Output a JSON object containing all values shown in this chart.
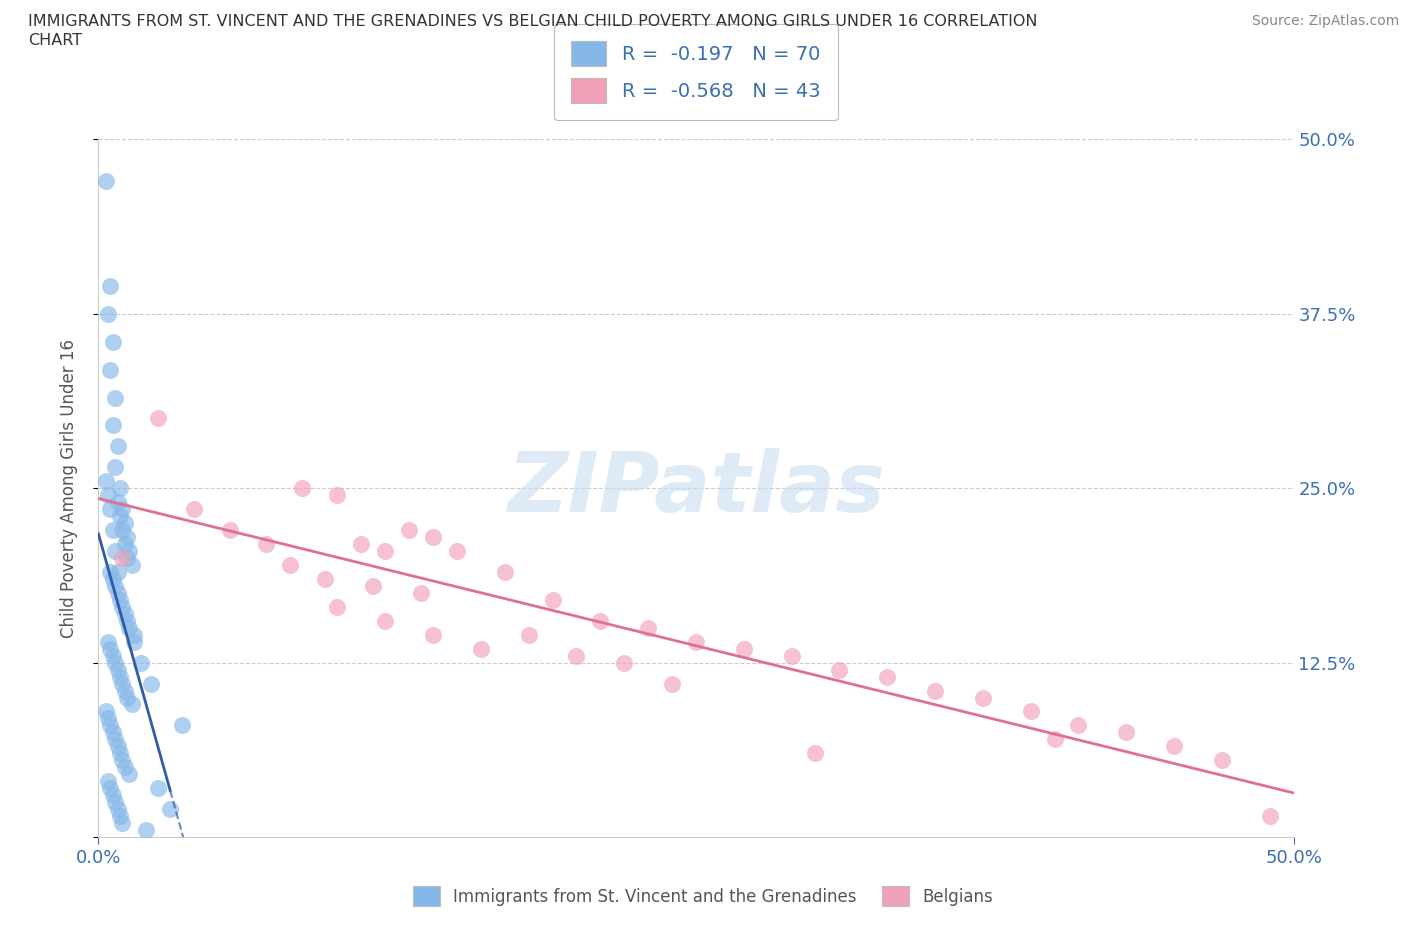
{
  "title_line1": "IMMIGRANTS FROM ST. VINCENT AND THE GRENADINES VS BELGIAN CHILD POVERTY AMONG GIRLS UNDER 16 CORRELATION",
  "title_line2": "CHART",
  "source": "Source: ZipAtlas.com",
  "ylabel": "Child Poverty Among Girls Under 16",
  "legend1_label": "Immigrants from St. Vincent and the Grenadines",
  "legend2_label": "Belgians",
  "r1": -0.197,
  "n1": 70,
  "r2": -0.568,
  "n2": 43,
  "blue_color": "#85B8E8",
  "pink_color": "#F2A0B8",
  "blue_line_color": "#2F5CA8",
  "pink_line_color": "#E07090",
  "blue_scatter_x": [
    0.3,
    0.5,
    0.4,
    0.6,
    0.5,
    0.7,
    0.6,
    0.8,
    0.7,
    0.9,
    0.8,
    1.0,
    0.9,
    1.1,
    1.0,
    1.2,
    1.1,
    1.3,
    1.2,
    1.4,
    0.5,
    0.6,
    0.7,
    0.8,
    0.9,
    1.0,
    1.1,
    1.2,
    1.3,
    1.5,
    0.4,
    0.5,
    0.6,
    0.7,
    0.8,
    0.9,
    1.0,
    1.1,
    1.2,
    1.4,
    0.3,
    0.4,
    0.5,
    0.6,
    0.7,
    0.8,
    0.9,
    1.0,
    1.1,
    1.3,
    0.4,
    0.5,
    0.6,
    0.7,
    0.8,
    0.9,
    1.0,
    2.0,
    2.5,
    3.0,
    0.3,
    0.4,
    0.5,
    0.6,
    0.7,
    0.8,
    1.5,
    1.8,
    2.2,
    3.5
  ],
  "blue_scatter_y": [
    47.0,
    39.5,
    37.5,
    35.5,
    33.5,
    31.5,
    29.5,
    28.0,
    26.5,
    25.0,
    24.0,
    23.5,
    23.0,
    22.5,
    22.0,
    21.5,
    21.0,
    20.5,
    20.0,
    19.5,
    19.0,
    18.5,
    18.0,
    17.5,
    17.0,
    16.5,
    16.0,
    15.5,
    15.0,
    14.5,
    14.0,
    13.5,
    13.0,
    12.5,
    12.0,
    11.5,
    11.0,
    10.5,
    10.0,
    9.5,
    9.0,
    8.5,
    8.0,
    7.5,
    7.0,
    6.5,
    6.0,
    5.5,
    5.0,
    4.5,
    4.0,
    3.5,
    3.0,
    2.5,
    2.0,
    1.5,
    1.0,
    0.5,
    3.5,
    2.0,
    25.5,
    24.5,
    23.5,
    22.0,
    20.5,
    19.0,
    14.0,
    12.5,
    11.0,
    8.0
  ],
  "pink_scatter_x": [
    1.0,
    2.5,
    4.0,
    5.5,
    7.0,
    8.5,
    10.0,
    11.0,
    12.0,
    13.0,
    14.0,
    8.0,
    9.5,
    11.5,
    13.5,
    15.0,
    17.0,
    19.0,
    21.0,
    23.0,
    25.0,
    27.0,
    29.0,
    31.0,
    33.0,
    35.0,
    37.0,
    39.0,
    41.0,
    43.0,
    45.0,
    47.0,
    49.0,
    10.0,
    12.0,
    14.0,
    16.0,
    18.0,
    20.0,
    22.0,
    24.0,
    40.0,
    30.0
  ],
  "pink_scatter_y": [
    20.0,
    30.0,
    23.5,
    22.0,
    21.0,
    25.0,
    24.5,
    21.0,
    20.5,
    22.0,
    21.5,
    19.5,
    18.5,
    18.0,
    17.5,
    20.5,
    19.0,
    17.0,
    15.5,
    15.0,
    14.0,
    13.5,
    13.0,
    12.0,
    11.5,
    10.5,
    10.0,
    9.0,
    8.0,
    7.5,
    6.5,
    5.5,
    1.5,
    16.5,
    15.5,
    14.5,
    13.5,
    14.5,
    13.0,
    12.5,
    11.0,
    7.0,
    6.0
  ],
  "xlim": [
    0,
    50
  ],
  "ylim": [
    0,
    50
  ],
  "yticks": [
    0,
    12.5,
    25.0,
    37.5,
    50.0
  ],
  "xticks": [
    0,
    50
  ],
  "grid_color": "#CCCCCC",
  "watermark_color": "#C8DCF0",
  "watermark_text": "ZIPatlas"
}
